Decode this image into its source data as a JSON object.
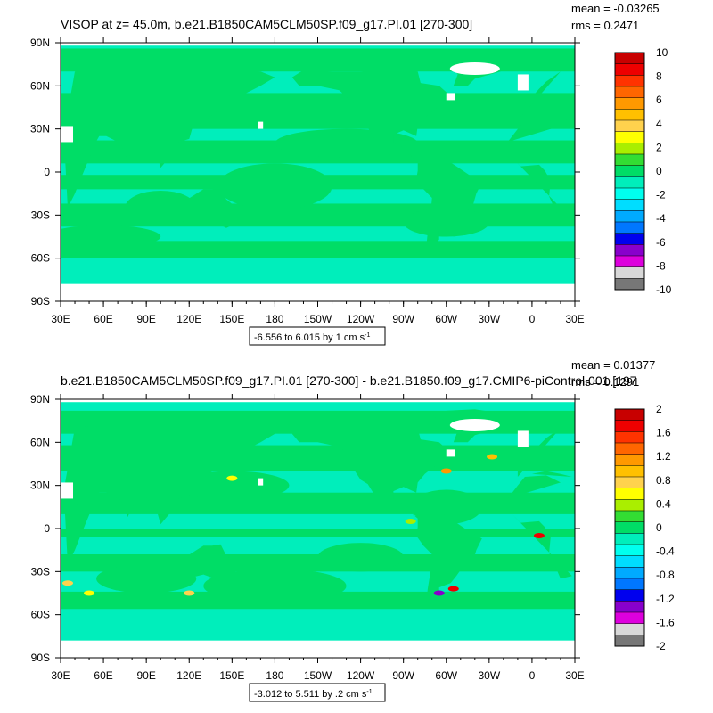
{
  "chart_data": [
    {
      "type": "heatmap",
      "title": "VISOP at z=  45.0m, b.e21.B1850CAM5CLM50SP.f09_g17.PI.01 [270-300]",
      "stats": {
        "mean": "mean = -0.03265",
        "rms": "rms = 0.2471"
      },
      "x_ticks": [
        "30E",
        "60E",
        "90E",
        "120E",
        "150E",
        "180",
        "150W",
        "120W",
        "90W",
        "60W",
        "30W",
        "0",
        "30E"
      ],
      "y_ticks": [
        "90N",
        "60N",
        "30N",
        "0",
        "30S",
        "60S",
        "90S"
      ],
      "contour_info": {
        "text": "-6.556 to 6.015 by 1 cm s",
        "unit_sup": "-1"
      },
      "colorbar": {
        "levels": [
          "10",
          "8",
          "6",
          "4",
          "2",
          "0",
          "-2",
          "-4",
          "-6",
          "-8",
          "-10"
        ],
        "colors": [
          "#c80000",
          "#ee0000",
          "#ff3300",
          "#ff6600",
          "#ff9900",
          "#ffc000",
          "#ffd24d",
          "#ffff00",
          "#aaee00",
          "#33dd33",
          "#00dd66",
          "#00eebb",
          "#00ffee",
          "#00ddff",
          "#00aaff",
          "#0077ff",
          "#0000ee",
          "#8800cc",
          "#dd00dd",
          "#d8d8d8",
          "#777777"
        ]
      },
      "field": {
        "ocean_color": "#33ee99",
        "land_color": "#ffffff",
        "summary": "Near-zero values dominate; green (0 to 2) bands along equator and subtropics, cyan (-2 to 0) elsewhere."
      }
    },
    {
      "type": "heatmap",
      "title": "b.e21.B1850CAM5CLM50SP.f09_g17.PI.01 [270-300] - b.e21.B1850.f09_g17.CMIP6-piControl.001 [197",
      "stats": {
        "mean": "mean = 0.01377",
        "rms": "rms = 0.1291"
      },
      "x_ticks": [
        "30E",
        "60E",
        "90E",
        "120E",
        "150E",
        "180",
        "150W",
        "120W",
        "90W",
        "60W",
        "30W",
        "0",
        "30E"
      ],
      "y_ticks": [
        "90N",
        "60N",
        "30N",
        "0",
        "30S",
        "60S",
        "90S"
      ],
      "contour_info": {
        "text": "-3.012 to 5.511 by .2 cm s",
        "unit_sup": "-1"
      },
      "colorbar": {
        "levels": [
          "2",
          "1.6",
          "1.2",
          "0.8",
          "0.4",
          "0",
          "-0.4",
          "-0.8",
          "-1.2",
          "-1.6",
          "-2"
        ],
        "colors": [
          "#c80000",
          "#ee0000",
          "#ff3300",
          "#ff6600",
          "#ff9900",
          "#ffc000",
          "#ffd24d",
          "#ffff00",
          "#aaee00",
          "#33dd33",
          "#00dd66",
          "#00eebb",
          "#00ffee",
          "#00ddff",
          "#00aaff",
          "#0077ff",
          "#0000ee",
          "#8800cc",
          "#dd00dd",
          "#d8d8d8",
          "#777777"
        ]
      },
      "field": {
        "ocean_color": "#33ee99",
        "land_color": "#ffffff",
        "summary": "Difference field mostly 0 to 0.4 (green) with cyan negatives; small warm/cold extremes near boundary currents."
      }
    }
  ]
}
